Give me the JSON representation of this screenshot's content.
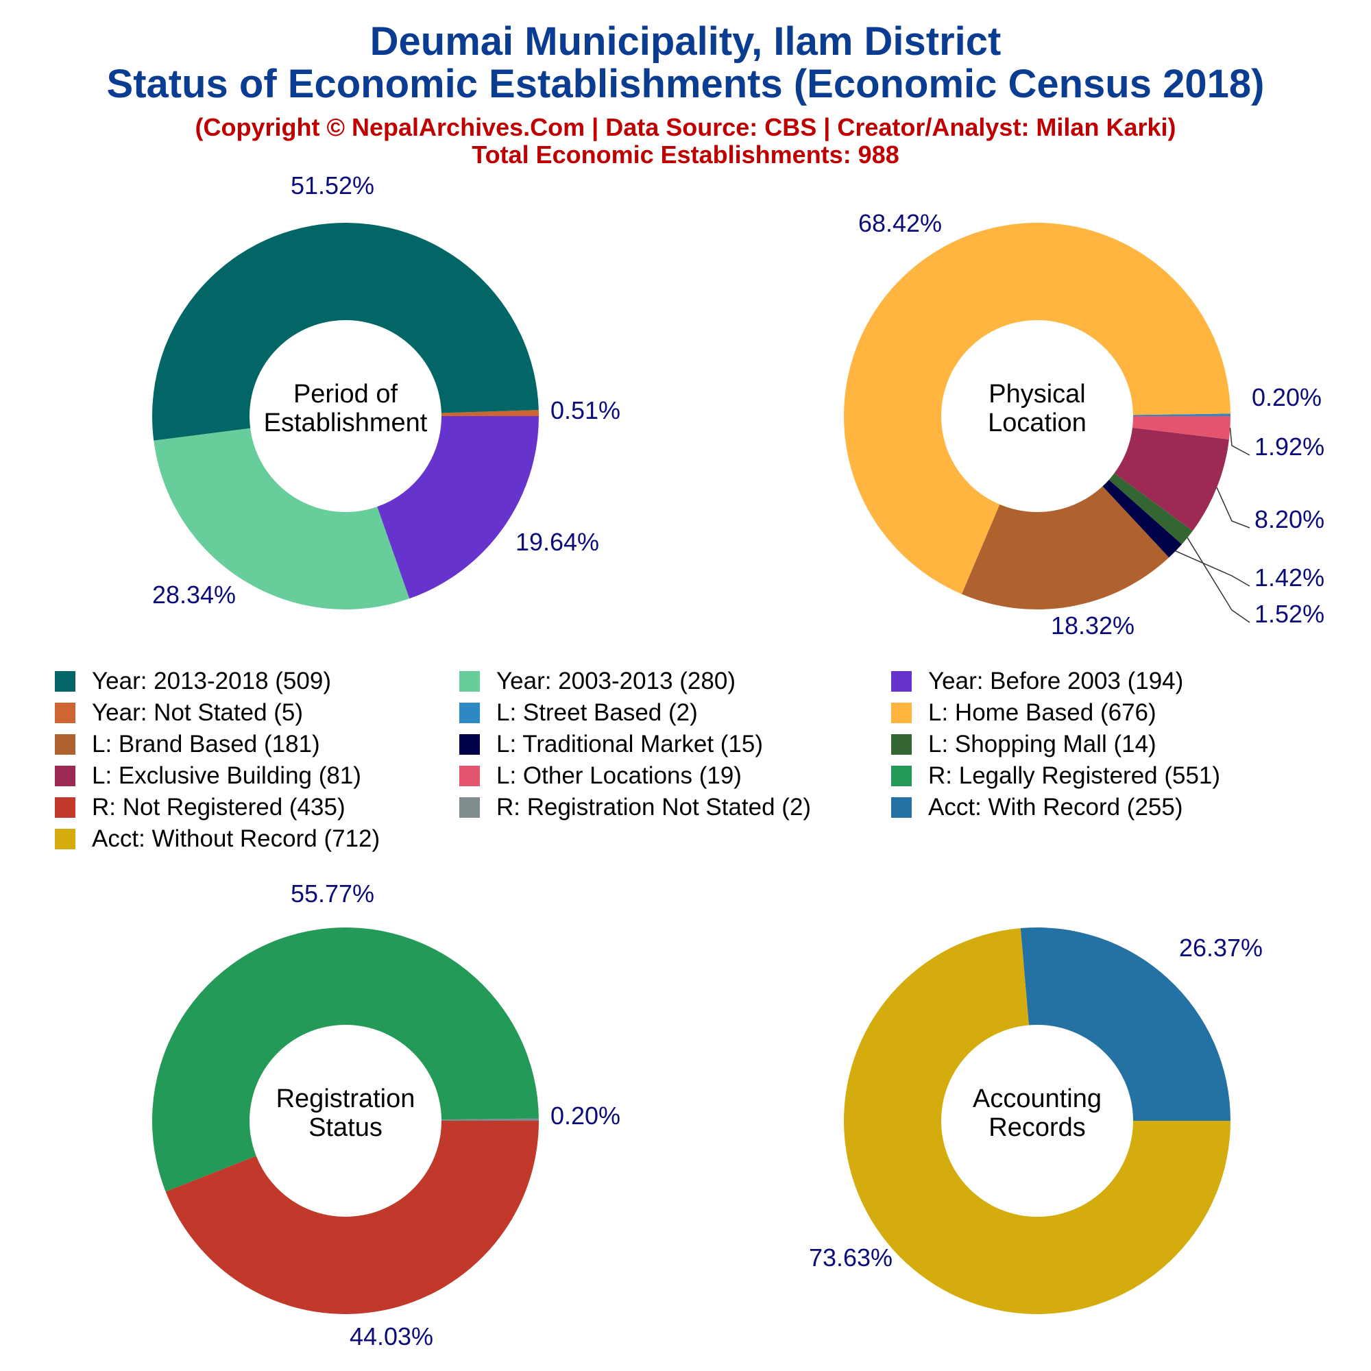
{
  "header": {
    "title_line1": "Deumai Municipality, Ilam District",
    "title_line2": "Status of Economic Establishments (Economic Census 2018)",
    "credit": "(Copyright © NepalArchives.Com | Data Source: CBS | Creator/Analyst: Milan Karki)",
    "total": "Total Economic Establishments: 988"
  },
  "legend": [
    {
      "label": "Year: 2013-2018 (509)",
      "color": "#036666"
    },
    {
      "label": "Year: 2003-2013 (280)",
      "color": "#67CD9A"
    },
    {
      "label": "Year: Before 2003 (194)",
      "color": "#6633CC"
    },
    {
      "label": "Year: Not Stated (5)",
      "color": "#CD6633"
    },
    {
      "label": "L: Street Based (2)",
      "color": "#2F88C6"
    },
    {
      "label": "L: Home Based (676)",
      "color": "#FFB53F"
    },
    {
      "label": "L: Brand Based (181)",
      "color": "#B0622E"
    },
    {
      "label": "L: Traditional Market (15)",
      "color": "#000049"
    },
    {
      "label": "L: Shopping Mall (14)",
      "color": "#336633"
    },
    {
      "label": "L: Exclusive Building (81)",
      "color": "#9C2A55"
    },
    {
      "label": "L: Other Locations (19)",
      "color": "#E4546F"
    },
    {
      "label": "R: Legally Registered (551)",
      "color": "#239A58"
    },
    {
      "label": "R: Not Registered (435)",
      "color": "#C0392B"
    },
    {
      "label": "R: Registration Not Stated (2)",
      "color": "#7F8C8D"
    },
    {
      "label": "Acct: With Record (255)",
      "color": "#2471A3"
    },
    {
      "label": "Acct: Without Record (712)",
      "color": "#D4AC0D"
    }
  ],
  "chart_data": [
    {
      "type": "pie",
      "center_label": [
        "Period of",
        "Establishment"
      ],
      "start_direction": "east",
      "slices": [
        {
          "name": "Year: Not Stated",
          "value": 5,
          "percent_label": "0.51%",
          "color": "#CD6633"
        },
        {
          "name": "Year: 2013-2018",
          "value": 509,
          "percent_label": "51.52%",
          "color": "#036666"
        },
        {
          "name": "Year: 2003-2013",
          "value": 280,
          "percent_label": "28.34%",
          "color": "#67CD9A"
        },
        {
          "name": "Year: Before 2003",
          "value": 194,
          "percent_label": "19.64%",
          "color": "#6633CC"
        }
      ]
    },
    {
      "type": "pie",
      "center_label": [
        "Physical",
        "Location"
      ],
      "start_direction": "east",
      "slices": [
        {
          "name": "L: Street Based",
          "value": 2,
          "percent_label": "0.20%",
          "color": "#2F88C6"
        },
        {
          "name": "L: Home Based",
          "value": 676,
          "percent_label": "68.42%",
          "color": "#FFB53F"
        },
        {
          "name": "L: Brand Based",
          "value": 181,
          "percent_label": "18.32%",
          "color": "#B0622E"
        },
        {
          "name": "L: Traditional Market",
          "value": 15,
          "percent_label": "1.52%",
          "color": "#000049"
        },
        {
          "name": "L: Shopping Mall",
          "value": 14,
          "percent_label": "1.42%",
          "color": "#336633"
        },
        {
          "name": "L: Exclusive Building",
          "value": 81,
          "percent_label": "8.20%",
          "color": "#9C2A55"
        },
        {
          "name": "L: Other Locations",
          "value": 19,
          "percent_label": "1.92%",
          "color": "#E4546F"
        }
      ]
    },
    {
      "type": "pie",
      "center_label": [
        "Registration",
        "Status"
      ],
      "start_direction": "east",
      "slices": [
        {
          "name": "R: Registration Not Stated",
          "value": 2,
          "percent_label": "0.20%",
          "color": "#7F8C8D"
        },
        {
          "name": "R: Legally Registered",
          "value": 551,
          "percent_label": "55.77%",
          "color": "#239A58"
        },
        {
          "name": "R: Not Registered",
          "value": 435,
          "percent_label": "44.03%",
          "color": "#C0392B"
        }
      ]
    },
    {
      "type": "pie",
      "center_label": [
        "Accounting",
        "Records"
      ],
      "start_direction": "east",
      "slices": [
        {
          "name": "Acct: With Record",
          "value": 255,
          "percent_label": "26.37%",
          "color": "#2471A3"
        },
        {
          "name": "Acct: Without Record",
          "value": 712,
          "percent_label": "73.63%",
          "color": "#D4AC0D"
        }
      ]
    }
  ]
}
